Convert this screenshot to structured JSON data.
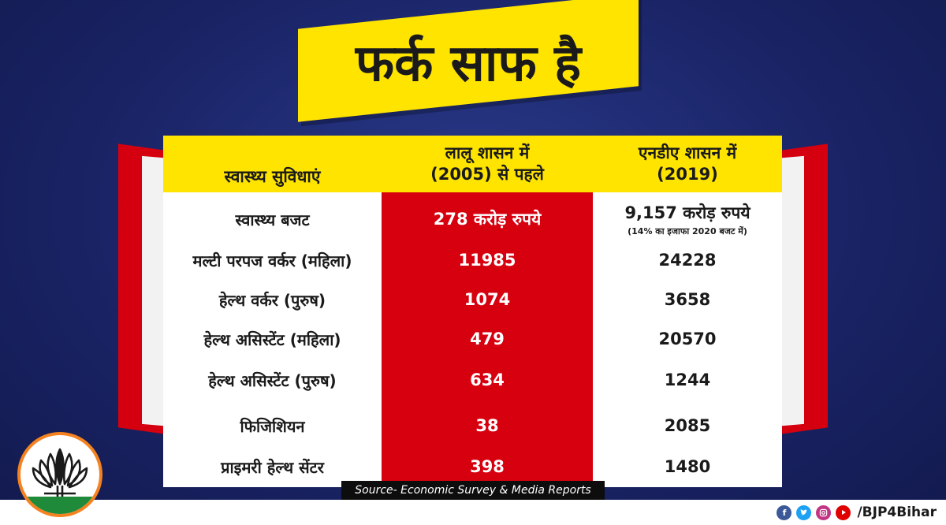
{
  "headline": "फर्क साफ है",
  "table": {
    "headers": {
      "col1": "स्वास्थ्य सुविधाएं",
      "col2_line1": "लालू शासन में",
      "col2_line2": "(2005) से पहले",
      "col3_line1": "एनडीए शासन में",
      "col3_line2": "(2019)"
    },
    "rows": [
      {
        "label": "स्वास्थ्य बजट",
        "before": "278 करोड़ रुपये",
        "after": "9,157 करोड़ रुपये",
        "after_note": "(14% का इजाफा 2020 बजट में)"
      },
      {
        "label": "मल्टी परपज वर्कर (महिला)",
        "before": "11985",
        "after": "24228"
      },
      {
        "label": "हेल्थ वर्कर (पुरुष)",
        "before": "1074",
        "after": "3658"
      },
      {
        "label": "हेल्थ असिस्टेंट (महिला)",
        "before": "479",
        "after": "20570"
      },
      {
        "label": "हेल्थ असिस्टेंट (पुरुष)",
        "before": "634",
        "after": "1244"
      },
      {
        "label": "फिजिशियन",
        "before": "38",
        "after": "2085"
      },
      {
        "label": "प्राइमरी हेल्थ सेंटर",
        "before": "398",
        "after": "1480"
      }
    ]
  },
  "source": "Source- Economic Survey & Media Reports",
  "footer": {
    "handle": "/BJP4Bihar",
    "icons": [
      "facebook-icon",
      "twitter-icon",
      "instagram-icon",
      "youtube-icon"
    ]
  },
  "colors": {
    "background": "#1a2466",
    "yellow": "#ffe400",
    "red": "#d6000f",
    "saffron": "#f58220",
    "green": "#1f8a3a"
  }
}
